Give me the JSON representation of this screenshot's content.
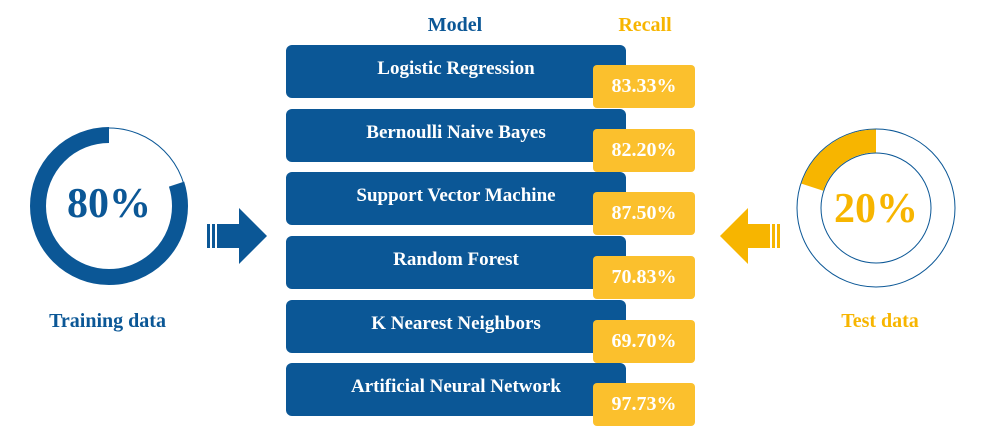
{
  "headers": {
    "model": "Model",
    "recall": "Recall"
  },
  "models": [
    {
      "name": "Logistic Regression",
      "recall": "83.33%"
    },
    {
      "name": "Bernoulli Naive Bayes",
      "recall": "82.20%"
    },
    {
      "name": "Support Vector Machine",
      "recall": "87.50%"
    },
    {
      "name": "Random Forest",
      "recall": "70.83%"
    },
    {
      "name": "K Nearest Neighbors",
      "recall": "69.70%"
    },
    {
      "name": "Artificial Neural Network",
      "recall": "97.73%"
    }
  ],
  "training": {
    "percent_label": "80%",
    "caption": "Training data",
    "fraction": 0.8
  },
  "test": {
    "percent_label": "20%",
    "caption": "Test data",
    "fraction": 0.2
  },
  "colors": {
    "blue": "#0b5796",
    "yellow": "#f7b500",
    "yellow_box": "#fbc02d"
  }
}
